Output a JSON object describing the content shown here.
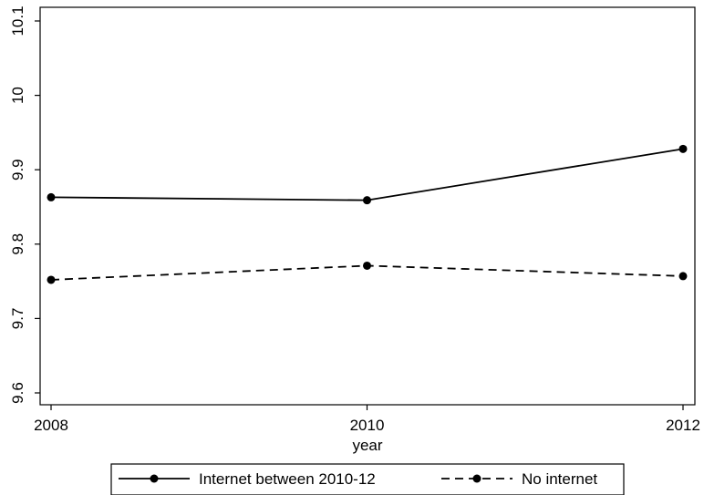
{
  "chart_data": {
    "type": "line",
    "title": "",
    "xlabel": "year",
    "ylabel": "",
    "x": [
      2008,
      2010,
      2012
    ],
    "xticks": [
      "2008",
      "2010",
      "2012"
    ],
    "ylim": [
      9.6,
      10.1
    ],
    "yticks": [
      "9.6",
      "9.7",
      "9.8",
      "9.9",
      "10",
      "10.1"
    ],
    "grid": false,
    "legend_position": "bottom",
    "series": [
      {
        "name": "Internet between 2010-12",
        "values": [
          9.863,
          9.859,
          9.928
        ],
        "style": "solid",
        "color": "#000000"
      },
      {
        "name": "No internet",
        "values": [
          9.752,
          9.771,
          9.757
        ],
        "style": "dashed",
        "color": "#000000"
      }
    ]
  }
}
